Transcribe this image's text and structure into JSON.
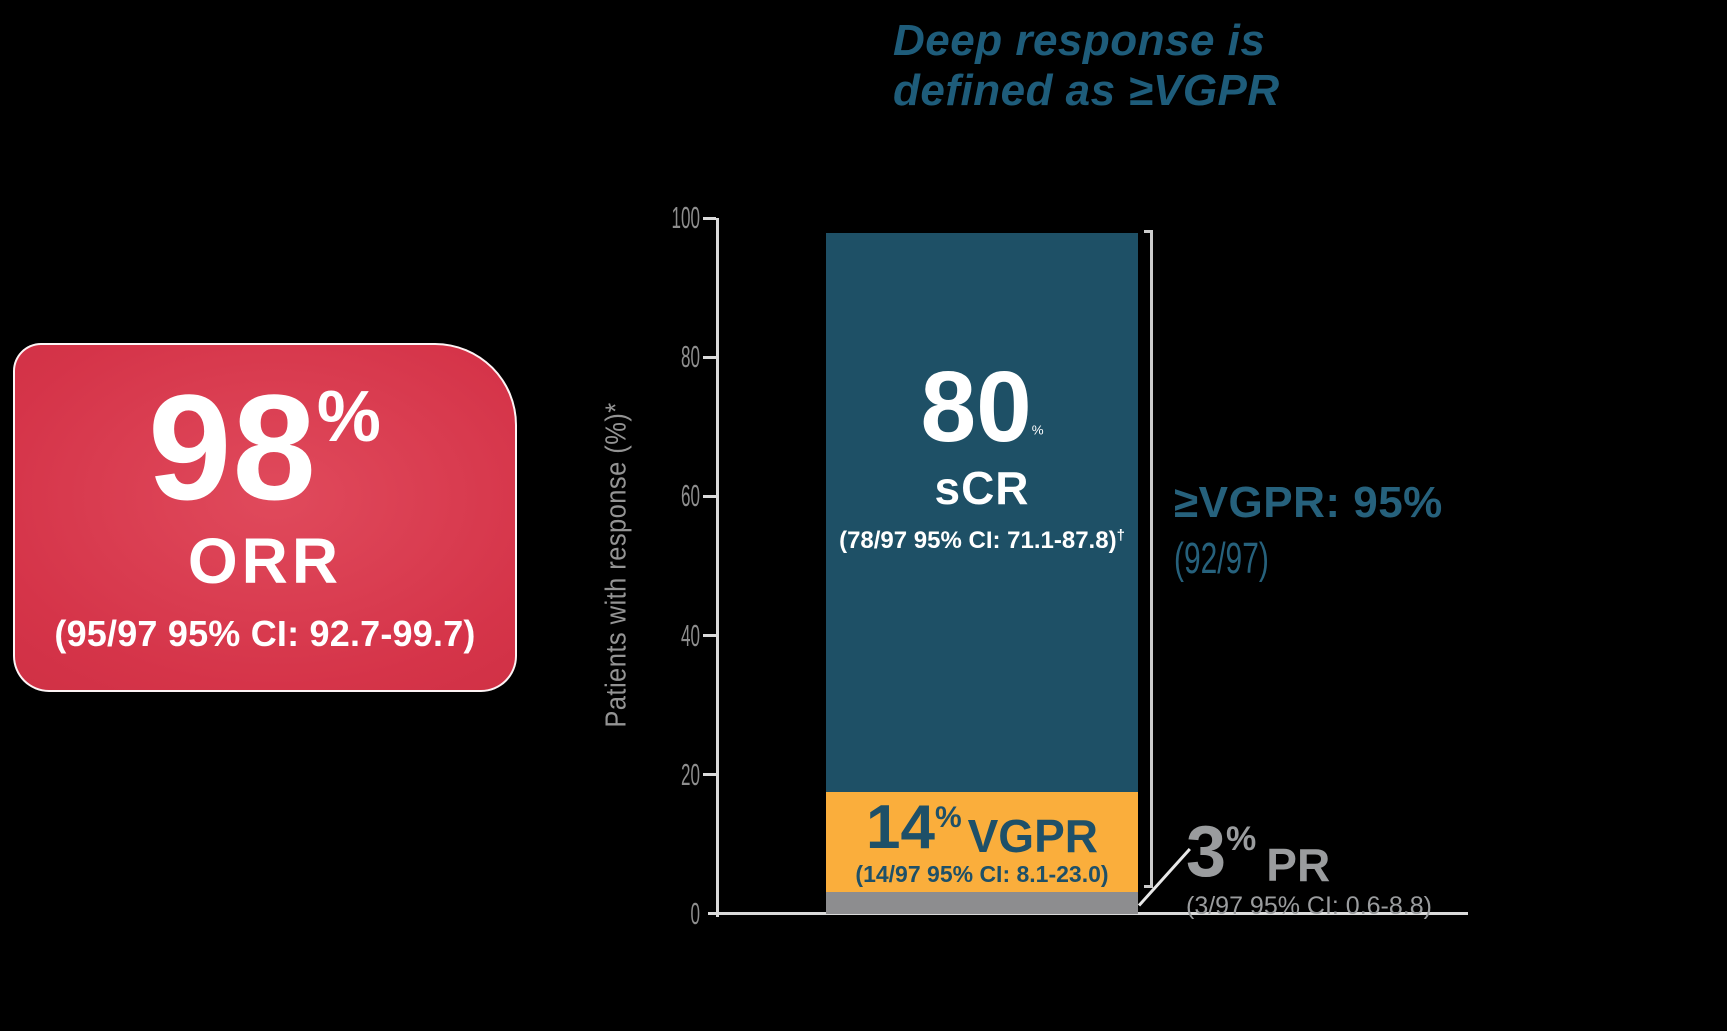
{
  "page": {
    "background": "#000000"
  },
  "title": {
    "line1": "Deep response is",
    "line2": "defined as ≥VGPR",
    "color": "#1E5C7A"
  },
  "orr_card": {
    "value": "98",
    "unit": "%",
    "label": "ORR",
    "ci": "(95/97 95% CI: 92.7-99.7)",
    "bg_color": "#D53449"
  },
  "chart_data": {
    "type": "bar",
    "stacked": true,
    "title": "Deep response is defined as ≥VGPR",
    "ylabel": "Patients with response (%)*",
    "ylim": [
      0,
      100
    ],
    "y_ticks": [
      100,
      80,
      60,
      40,
      20,
      0
    ],
    "grid": false,
    "categories": [
      "Patients with response"
    ],
    "segments": [
      {
        "name": "sCR",
        "value_pct": 80.4,
        "label_value": "80",
        "label_unit": "%",
        "label_name": "sCR",
        "fraction": "78/97",
        "ci": "(78/97 95% CI: 71.1-87.8)",
        "ci_mark": "†",
        "color": "#1E5066",
        "text_color": "#FFFFFF"
      },
      {
        "name": "VGPR",
        "value_pct": 14.4,
        "label_value": "14",
        "label_unit": "%",
        "label_name": "VGPR",
        "fraction": "14/97",
        "ci": "(14/97 95% CI: 8.1-23.0)",
        "color": "#FAAE3C",
        "text_color": "#1E5068"
      },
      {
        "name": "PR",
        "value_pct": 3.1,
        "label_value": "3",
        "label_unit": "%",
        "label_name": "PR",
        "fraction": "3/97",
        "ci": "(3/97 95% CI: 0.6-8.8)",
        "color": "#8D8D8F",
        "text_color": "#9A9C9E"
      }
    ],
    "annotations": {
      "vgpr_total": {
        "label": "≥VGPR: 95%",
        "fraction": "(92/97)",
        "color": "#26617C"
      }
    }
  }
}
